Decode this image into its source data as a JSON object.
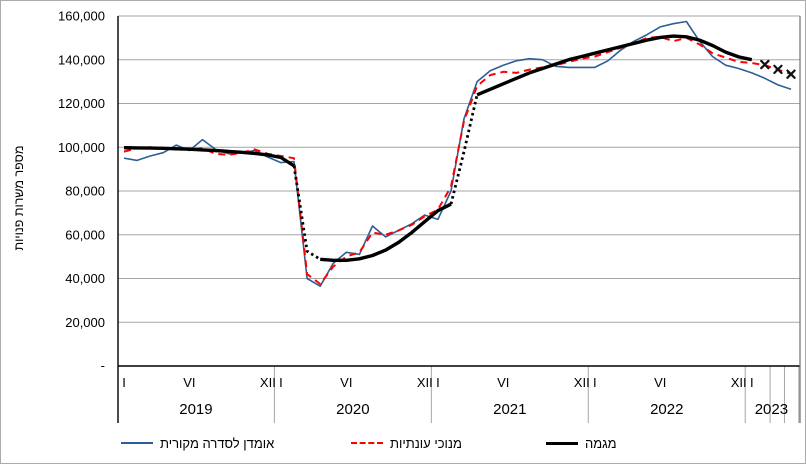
{
  "figure": {
    "background": "#ffffff",
    "border_color": "#ababab"
  },
  "y_axis": {
    "title": "מספר משרות פנויות",
    "tick_labels": [
      "160,000",
      "140,000",
      "120,000",
      "100,000",
      "80,000",
      "60,000",
      "40,000",
      "20,000"
    ],
    "zero_label": "-",
    "min": 0,
    "max": 160000,
    "tick_step": 20000,
    "gridline_color": "#a6a6a6"
  },
  "x_axis": {
    "month_tick_labels": [
      "I",
      "VI",
      "XII"
    ],
    "years": [
      {
        "label": "2019",
        "months": 12
      },
      {
        "label": "2020",
        "months": 12
      },
      {
        "label": "2021",
        "months": 12
      },
      {
        "label": "2022",
        "months": 12
      },
      {
        "label": "2023",
        "months": 4
      }
    ],
    "extra_separator_positions": [
      49.4,
      50.5,
      51.6
    ],
    "separator_color": "#a6a6a6"
  },
  "legend": {
    "items": [
      {
        "label": "אומדן לסדרה מקורית",
        "style": "thin-solid",
        "color": "#2e5e97"
      },
      {
        "label": "מנוכי עונתיות",
        "style": "dashed",
        "color": "#ff0000"
      },
      {
        "label": "מגמה",
        "style": "thick-solid",
        "color": "#000000"
      }
    ]
  },
  "chart_data": {
    "type": "line",
    "title": "",
    "ylabel": "מספר משרות פנויות",
    "ylim": [
      0,
      160000
    ],
    "x_unit": "month",
    "x_range_start": "2019-01",
    "x_range_end": "2023-04",
    "n_months": 52,
    "grid": "horizontal",
    "legend_position": "bottom",
    "series": [
      {
        "name": "אומדן לסדרה מקורית",
        "color": "#2e5e97",
        "style": "thin-solid",
        "values": [
          95000,
          94000,
          96000,
          97500,
          101000,
          98500,
          103500,
          99000,
          97000,
          97500,
          98500,
          95500,
          93000,
          93500,
          40000,
          36500,
          47000,
          52000,
          51000,
          64000,
          59000,
          62000,
          65000,
          69000,
          67000,
          80000,
          113000,
          130000,
          135000,
          137500,
          139500,
          140500,
          140000,
          137000,
          136500,
          136500,
          136500,
          139500,
          144500,
          148500,
          151500,
          155000,
          156500,
          157500,
          148500,
          141500,
          137500,
          136000,
          134000,
          131500,
          128500,
          126500
        ]
      },
      {
        "name": "מנוכי עונתיות",
        "color": "#ff0000",
        "style": "dashed",
        "values": [
          98000,
          99500,
          100000,
          99500,
          99000,
          99000,
          99500,
          97000,
          96500,
          97500,
          99000,
          97000,
          96000,
          95000,
          42000,
          37500,
          45500,
          50000,
          52000,
          61000,
          60000,
          62000,
          64500,
          68500,
          71500,
          82000,
          112000,
          128000,
          133000,
          134500,
          134000,
          135500,
          136500,
          137500,
          139000,
          140500,
          141500,
          143500,
          145500,
          147500,
          150000,
          150500,
          148500,
          150000,
          147000,
          143000,
          141000,
          139000,
          138500,
          137500,
          135500,
          133500
        ]
      },
      {
        "name": "מגמה",
        "color": "#000000",
        "style": "thick-solid",
        "values": [
          99800,
          99700,
          99600,
          99500,
          99300,
          99100,
          98800,
          98500,
          98100,
          97700,
          97200,
          96500,
          95300,
          91500,
          52500,
          48800,
          48300,
          48300,
          49000,
          50500,
          53000,
          56500,
          61000,
          66000,
          71000,
          74000,
          98000,
          124000,
          126500,
          129000,
          131500,
          134000,
          136000,
          138000,
          140000,
          141500,
          143000,
          144500,
          146000,
          147500,
          149000,
          150200,
          150800,
          150500,
          149000,
          146500,
          143500,
          141300,
          140000
        ],
        "segments": [
          {
            "from": 0,
            "to": 13,
            "line": "solid"
          },
          {
            "from": 13,
            "to": 15,
            "line": "dotted"
          },
          {
            "from": 15,
            "to": 25,
            "line": "solid"
          },
          {
            "from": 25,
            "to": 27,
            "line": "dotted"
          },
          {
            "from": 27,
            "to": 48,
            "line": "solid"
          }
        ],
        "provisional_x_markers": {
          "marker": "x",
          "start_index": 49,
          "months": [
            "2023-02",
            "2023-03",
            "2023-04"
          ],
          "values": [
            137800,
            135600,
            133400
          ]
        }
      }
    ]
  }
}
